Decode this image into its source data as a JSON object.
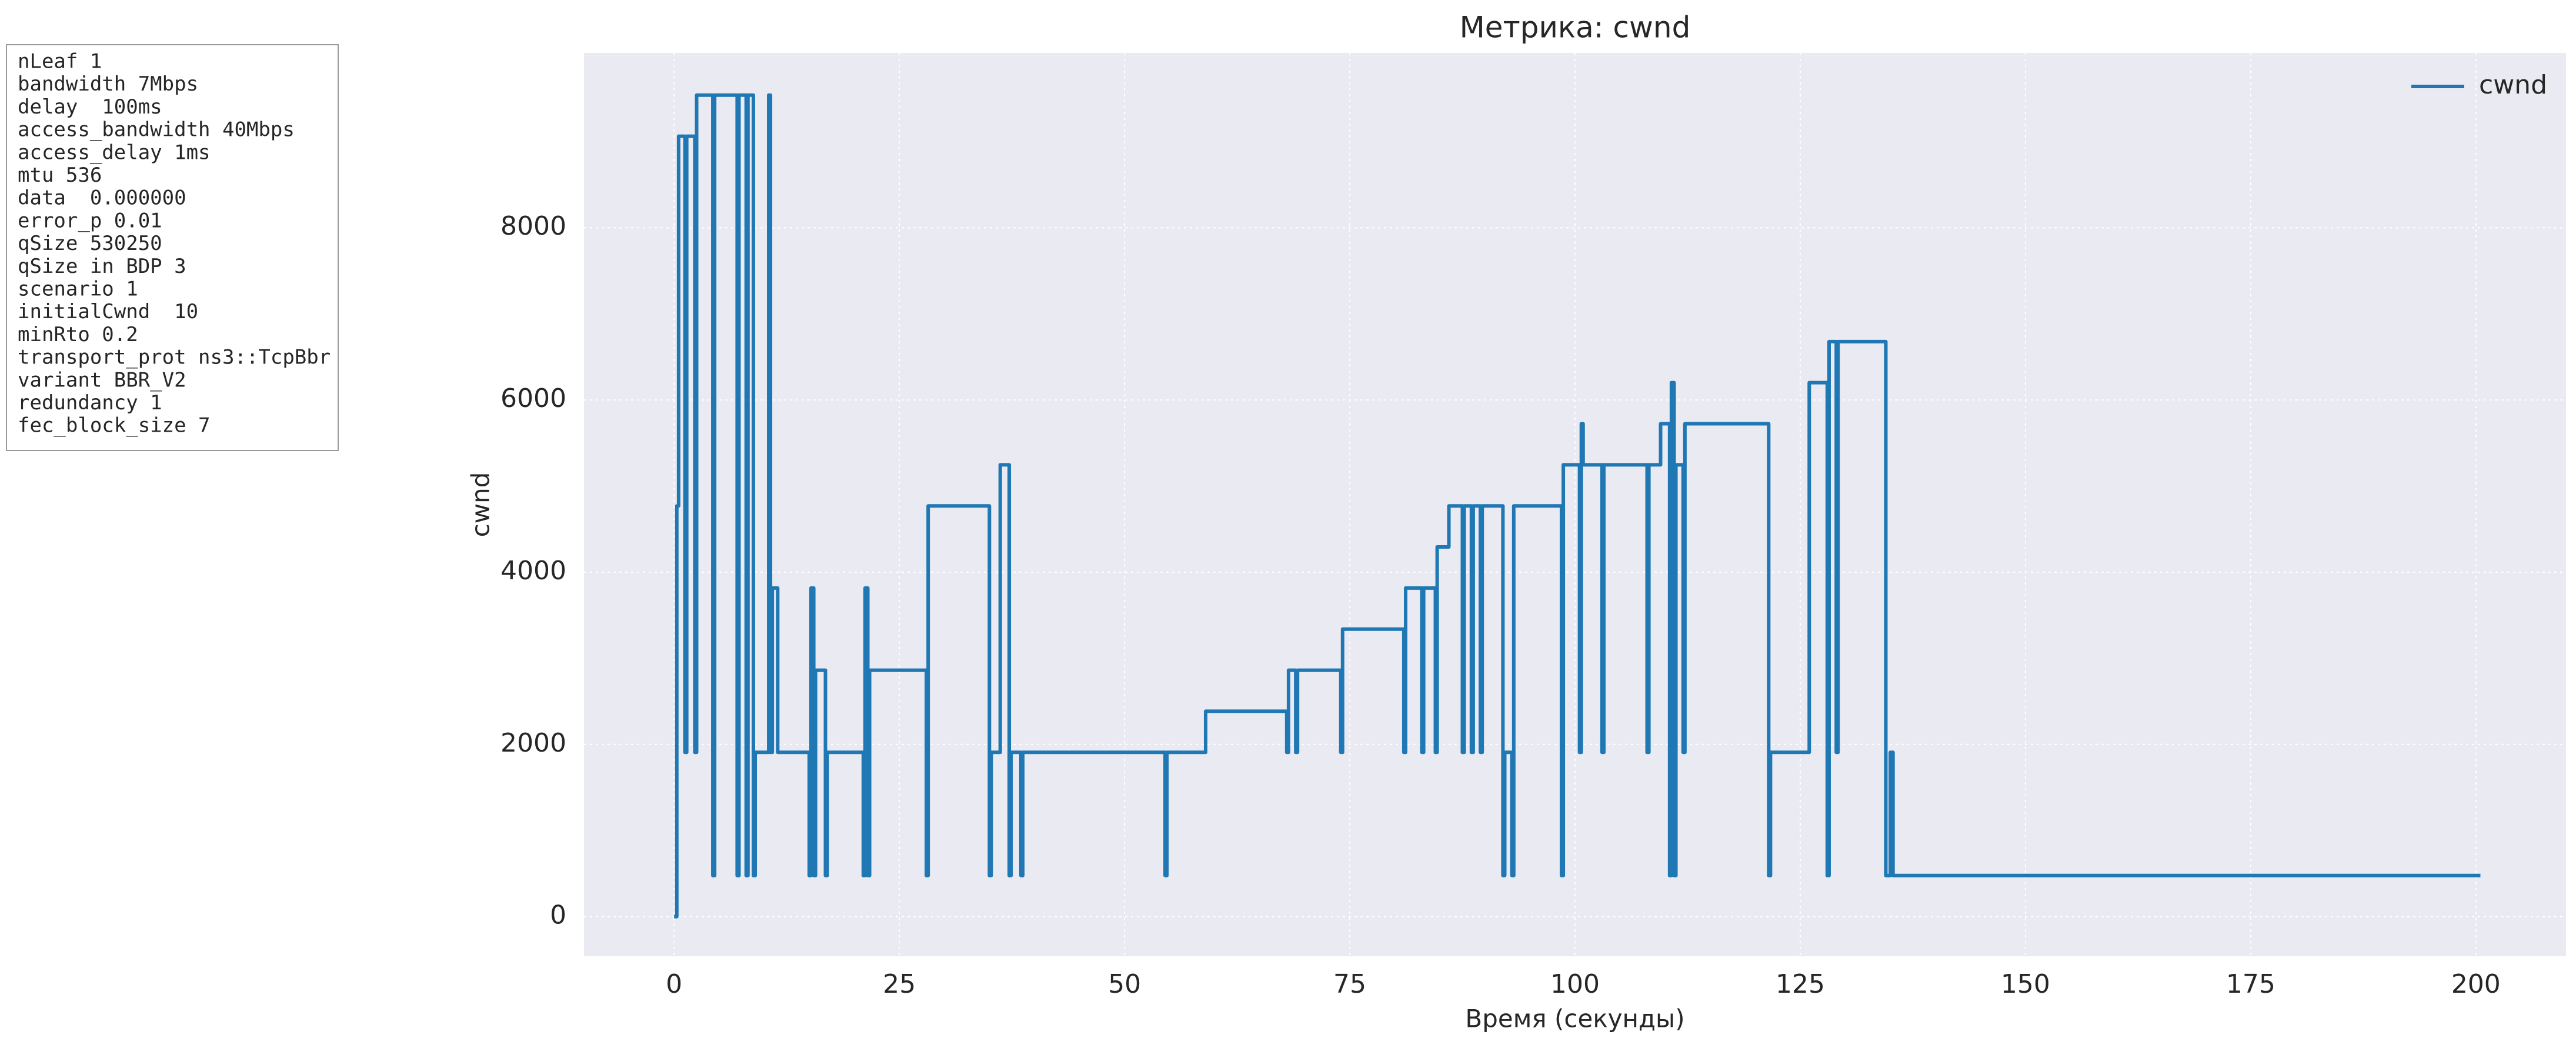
{
  "params": [
    "nLeaf 1",
    "bandwidth 7Mbps",
    "delay  100ms",
    "access_bandwidth 40Mbps",
    "access_delay 1ms",
    "mtu 536",
    "data  0.000000",
    "error_p 0.01",
    "qSize 530250",
    "qSize in BDP 3",
    "scenario 1",
    "initialCwnd  10",
    "minRto 0.2",
    "transport_prot ns3::TcpBbr",
    "variant BBR_V2",
    "redundancy 1",
    "fec_block_size 7"
  ],
  "chart_data": {
    "type": "line",
    "step": true,
    "title": "Метрика: cwnd",
    "x_label": "Время (секунды)",
    "y_label": "cwnd",
    "x": [
      0,
      0.3,
      0.5,
      1.2,
      1.4,
      2.3,
      2.5,
      4.3,
      4.5,
      7.0,
      7.2,
      8.0,
      8.2,
      8.8,
      9.0,
      10.5,
      10.7,
      10.9,
      11.5,
      15.0,
      15.2,
      15.5,
      15.7,
      16.8,
      17.0,
      21.0,
      21.2,
      21.5,
      21.7,
      28.0,
      28.2,
      35.0,
      35.2,
      36.2,
      37.2,
      37.4,
      38.5,
      38.7,
      54.5,
      54.7,
      59.0,
      68.0,
      68.2,
      69.0,
      69.2,
      74.0,
      74.2,
      81.0,
      81.2,
      83.0,
      83.2,
      84.5,
      84.7,
      86.0,
      87.5,
      87.7,
      88.5,
      88.7,
      89.5,
      89.7,
      92.0,
      92.2,
      93.0,
      93.2,
      98.5,
      98.7,
      100.5,
      100.7,
      100.9,
      103.0,
      103.2,
      108.0,
      108.2,
      109.5,
      110.5,
      110.7,
      111.0,
      111.2,
      112.0,
      112.2,
      121.5,
      121.7,
      126.0,
      128.0,
      128.2,
      129.0,
      129.2,
      134.5,
      135.0,
      135.3,
      200.5
    ],
    "series": [
      {
        "name": "cwnd",
        "color": "#1f77b4",
        "values": [
          0,
          4770,
          9063,
          1908,
          9063,
          1908,
          9540,
          477,
          9540,
          477,
          9540,
          477,
          9540,
          477,
          1908,
          9540,
          1908,
          3816,
          1908,
          477,
          3816,
          477,
          2862,
          477,
          1908,
          477,
          3816,
          477,
          2862,
          477,
          4770,
          477,
          1908,
          5247,
          477,
          1908,
          477,
          1908,
          477,
          1908,
          2385,
          1908,
          2862,
          1908,
          2862,
          1908,
          3339,
          1908,
          3816,
          1908,
          3816,
          1908,
          4293,
          4770,
          1908,
          4770,
          1908,
          4770,
          1908,
          4770,
          477,
          1908,
          477,
          4770,
          477,
          5247,
          1908,
          5724,
          5247,
          1908,
          5247,
          1908,
          5247,
          5724,
          477,
          6201,
          477,
          5247,
          1908,
          5724,
          477,
          1908,
          6201,
          477,
          6678,
          1908,
          6678,
          477,
          1908,
          477,
          477
        ]
      }
    ],
    "xlim": [
      -10,
      210
    ],
    "ylim": [
      -460,
      10030
    ],
    "xticks": [
      0,
      25,
      50,
      75,
      100,
      125,
      150,
      175,
      200
    ],
    "yticks": [
      0,
      2000,
      4000,
      6000,
      8000
    ],
    "grid": true,
    "legend": "upper right"
  }
}
